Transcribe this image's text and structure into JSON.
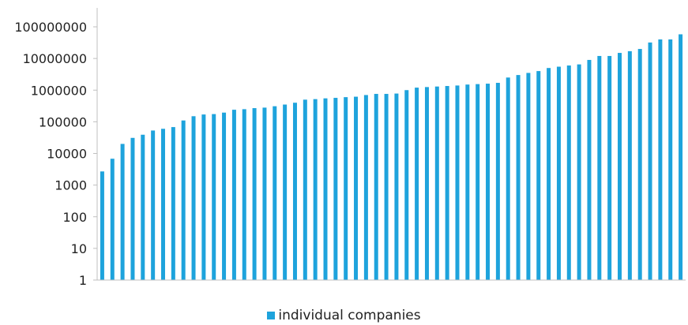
{
  "chart_data": {
    "type": "bar",
    "y_scale": "log",
    "ylim": [
      1,
      100000000
    ],
    "y_ticks": [
      "1",
      "10",
      "100",
      "1000",
      "10000",
      "100000",
      "1000000",
      "10000000",
      "100000000"
    ],
    "grid": false,
    "legend_position": "bottom",
    "bar_color": "#1ea3dc",
    "series": [
      {
        "name": "individual companies",
        "values": [
          2700,
          6800,
          20000,
          31000,
          39000,
          53000,
          60000,
          68000,
          110000,
          150000,
          170000,
          175000,
          195000,
          240000,
          250000,
          270000,
          280000,
          310000,
          350000,
          400000,
          500000,
          520000,
          550000,
          570000,
          600000,
          620000,
          700000,
          760000,
          760000,
          780000,
          1000000,
          1200000,
          1250000,
          1300000,
          1350000,
          1400000,
          1500000,
          1550000,
          1600000,
          1700000,
          2500000,
          3000000,
          3500000,
          4000000,
          5000000,
          5500000,
          6000000,
          6500000,
          9000000,
          12000000,
          12000000,
          15000000,
          17000000,
          20000000,
          32000000,
          40000000,
          40000000,
          58000000
        ]
      }
    ]
  }
}
